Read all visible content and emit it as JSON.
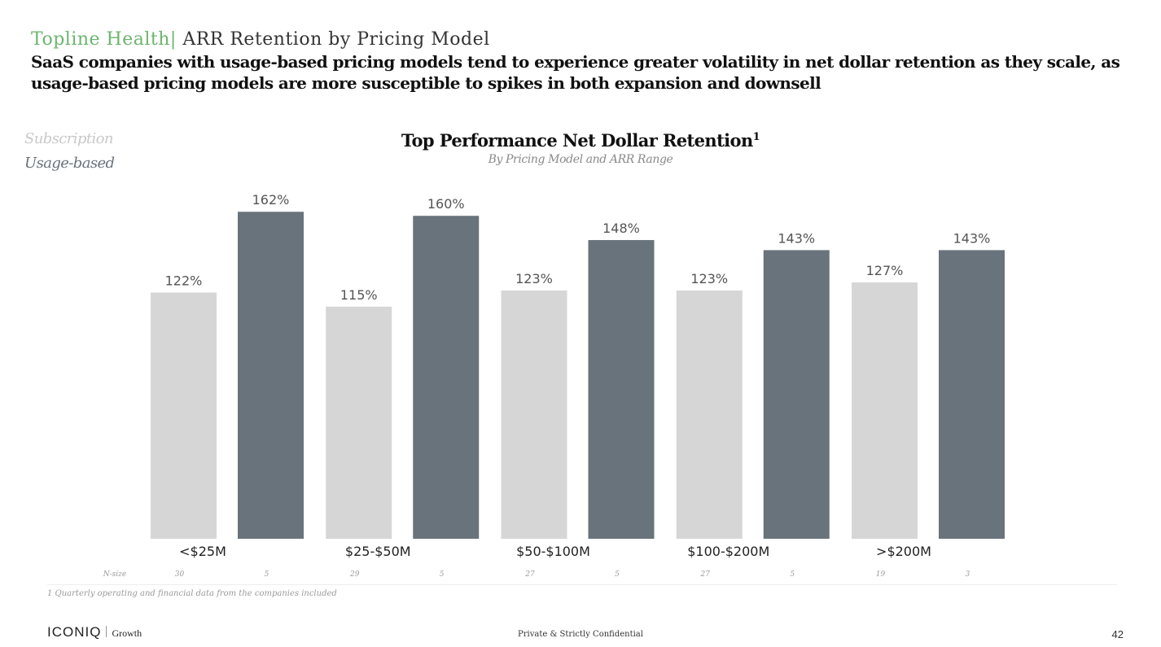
{
  "header": {
    "brand": "Topline Health",
    "divider": "|",
    "title": "ARR Retention by Pricing Model",
    "subtitle": "SaaS companies with usage-based pricing models tend to experience greater volatility in net dollar retention as they scale, as usage-based pricing models are more susceptible to spikes in both expansion and downsell"
  },
  "legend": {
    "subscription": "Subscription",
    "usage_based": "Usage-based"
  },
  "colors": {
    "brand": "#6cb56e",
    "subscription": "#d6d6d6",
    "usage_based": "#69737b"
  },
  "chart_data": {
    "type": "bar",
    "title": "Top Performance Net Dollar Retention",
    "title_superscript": "1",
    "subtitle": "By Pricing Model and ARR Range",
    "categories": [
      "<$25M",
      "$25-$50M",
      "$50-$100M",
      "$100-$200M",
      ">$200M"
    ],
    "series": [
      {
        "name": "Subscription",
        "values": [
          122,
          115,
          123,
          123,
          127
        ],
        "labels": [
          "122%",
          "115%",
          "123%",
          "123%",
          "127%"
        ],
        "n_size": [
          "30",
          "29",
          "27",
          "27",
          "19"
        ]
      },
      {
        "name": "Usage-based",
        "values": [
          162,
          160,
          148,
          143,
          143
        ],
        "labels": [
          "162%",
          "160%",
          "148%",
          "143%",
          "143%"
        ],
        "n_size": [
          "5",
          "5",
          "5",
          "5",
          "3"
        ]
      }
    ],
    "ylim": [
      0,
      175
    ],
    "grid": false,
    "legend": "top-left",
    "n_size_label": "N-size"
  },
  "footnote": "1 Quarterly operating and financial data from the companies included",
  "footer": {
    "logo": "ICONIQ",
    "logo_sub": "Growth",
    "confidential": "Private & Strictly Confidential",
    "page_number": "42"
  }
}
